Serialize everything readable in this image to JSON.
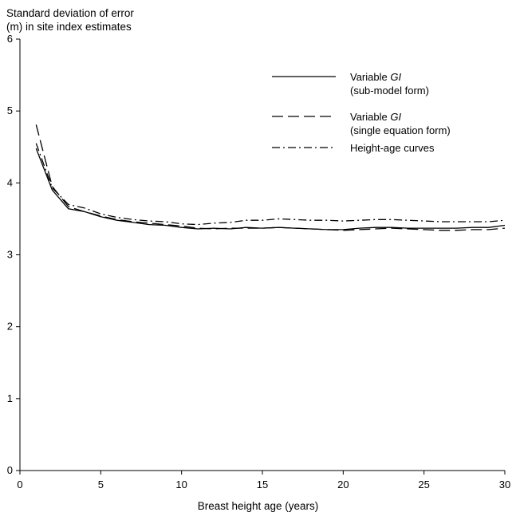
{
  "chart_data": {
    "type": "line",
    "ylabel_line1": "Standard deviation of error",
    "ylabel_line2": "(m) in site index estimates",
    "xlabel": "Breast height age (years)",
    "xlim": [
      0,
      30
    ],
    "ylim": [
      0,
      6
    ],
    "xticks": [
      "0",
      "5",
      "10",
      "15",
      "20",
      "25",
      "30"
    ],
    "yticks": [
      "0",
      "1",
      "2",
      "3",
      "4",
      "5",
      "6"
    ],
    "grid": false,
    "legend_position": "top-right",
    "x": [
      1,
      2,
      3,
      4,
      5,
      6,
      7,
      8,
      9,
      10,
      11,
      12,
      13,
      14,
      15,
      16,
      17,
      18,
      19,
      20,
      21,
      22,
      23,
      24,
      25,
      26,
      27,
      28,
      29,
      30
    ],
    "series": [
      {
        "name_prefix": "Variable",
        "name_italic": "GI",
        "name_line2": "(sub-model form)",
        "dash": "solid",
        "values": [
          4.48,
          3.9,
          3.64,
          3.6,
          3.53,
          3.48,
          3.45,
          3.42,
          3.41,
          3.38,
          3.36,
          3.37,
          3.36,
          3.38,
          3.37,
          3.38,
          3.37,
          3.36,
          3.35,
          3.35,
          3.37,
          3.38,
          3.38,
          3.37,
          3.37,
          3.37,
          3.37,
          3.38,
          3.38,
          3.41
        ]
      },
      {
        "name_prefix": "Variable",
        "name_italic": "GI",
        "name_line2": "(single equation form)",
        "dash": "dashed",
        "values": [
          4.81,
          3.95,
          3.67,
          3.6,
          3.54,
          3.49,
          3.46,
          3.44,
          3.42,
          3.4,
          3.37,
          3.36,
          3.37,
          3.37,
          3.37,
          3.38,
          3.37,
          3.36,
          3.35,
          3.34,
          3.35,
          3.36,
          3.37,
          3.36,
          3.35,
          3.34,
          3.34,
          3.35,
          3.35,
          3.37
        ]
      },
      {
        "name": "Height-age curves",
        "dash": "dash-dot",
        "values": [
          4.55,
          3.93,
          3.7,
          3.65,
          3.57,
          3.52,
          3.49,
          3.47,
          3.46,
          3.43,
          3.42,
          3.44,
          3.45,
          3.48,
          3.48,
          3.5,
          3.49,
          3.48,
          3.48,
          3.47,
          3.48,
          3.49,
          3.49,
          3.48,
          3.47,
          3.46,
          3.46,
          3.46,
          3.46,
          3.48
        ]
      }
    ]
  }
}
